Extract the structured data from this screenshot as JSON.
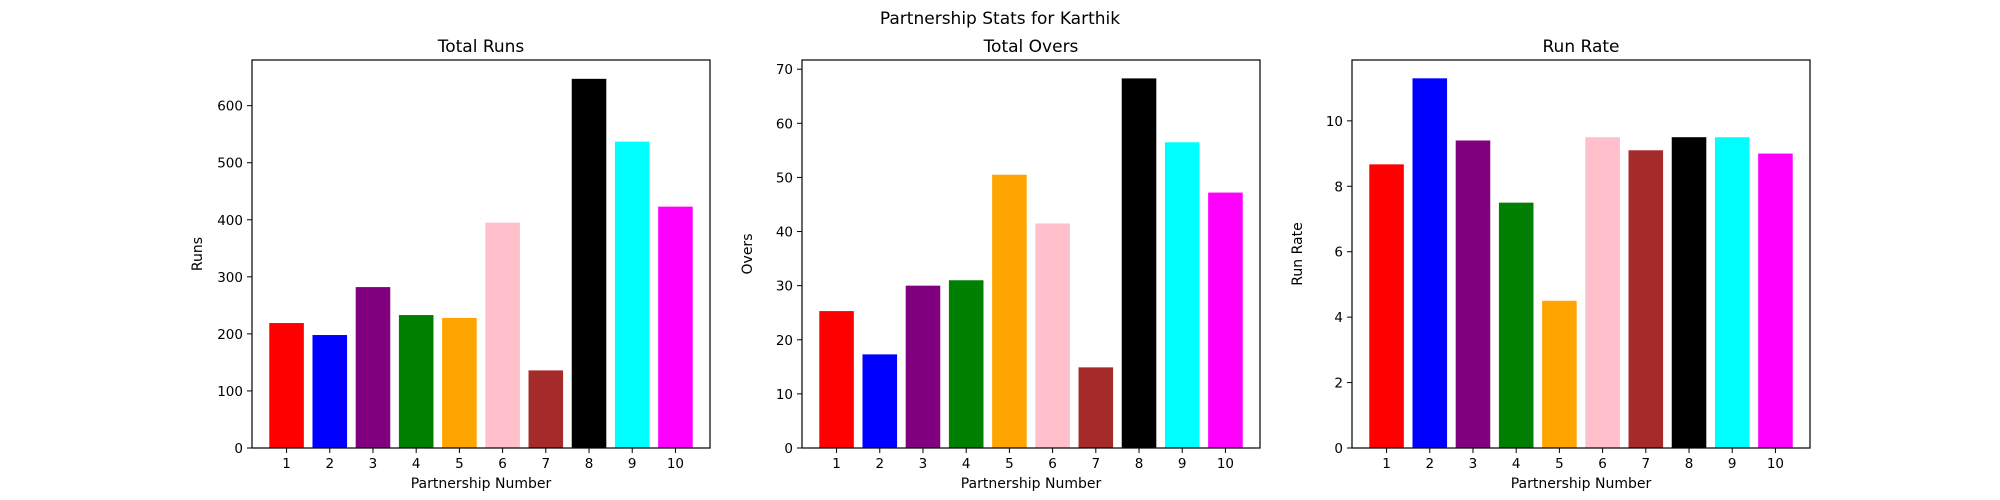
{
  "figure": {
    "title": "Partnership Stats for Karthik"
  },
  "chart_data": [
    {
      "type": "bar",
      "title": "Total Runs",
      "xlabel": "Partnership Number",
      "ylabel": "Runs",
      "categories": [
        "1",
        "2",
        "3",
        "4",
        "5",
        "6",
        "7",
        "8",
        "9",
        "10"
      ],
      "values": [
        219,
        198,
        282,
        233,
        228,
        395,
        136,
        647,
        537,
        423
      ],
      "colors": [
        "#ff0000",
        "#0000ff",
        "#800080",
        "#008000",
        "#ffa500",
        "#ffc0cb",
        "#a52a2a",
        "#000000",
        "#00ffff",
        "#ff00ff"
      ],
      "ylim": [
        0,
        680
      ],
      "yticks": [
        0,
        100,
        200,
        300,
        400,
        500,
        600
      ],
      "grid": false
    },
    {
      "type": "bar",
      "title": "Total Overs",
      "xlabel": "Partnership Number",
      "ylabel": "Overs",
      "categories": [
        "1",
        "2",
        "3",
        "4",
        "5",
        "6",
        "7",
        "8",
        "9",
        "10"
      ],
      "values": [
        25.3,
        17.3,
        30.0,
        31.0,
        50.5,
        41.5,
        14.9,
        68.3,
        56.5,
        47.2
      ],
      "colors": [
        "#ff0000",
        "#0000ff",
        "#800080",
        "#008000",
        "#ffa500",
        "#ffc0cb",
        "#a52a2a",
        "#000000",
        "#00ffff",
        "#ff00ff"
      ],
      "ylim": [
        0,
        71.7
      ],
      "yticks": [
        0,
        10,
        20,
        30,
        40,
        50,
        60,
        70
      ],
      "grid": false
    },
    {
      "type": "bar",
      "title": "Run Rate",
      "xlabel": "Partnership Number",
      "ylabel": "Run Rate",
      "categories": [
        "1",
        "2",
        "3",
        "4",
        "5",
        "6",
        "7",
        "8",
        "9",
        "10"
      ],
      "values": [
        8.67,
        11.3,
        9.4,
        7.5,
        4.5,
        9.5,
        9.1,
        9.5,
        9.5,
        9.0
      ],
      "colors": [
        "#ff0000",
        "#0000ff",
        "#800080",
        "#008000",
        "#ffa500",
        "#ffc0cb",
        "#a52a2a",
        "#000000",
        "#00ffff",
        "#ff00ff"
      ],
      "ylim": [
        0,
        11.86
      ],
      "yticks": [
        0,
        2,
        4,
        6,
        8,
        10
      ],
      "grid": false
    }
  ]
}
